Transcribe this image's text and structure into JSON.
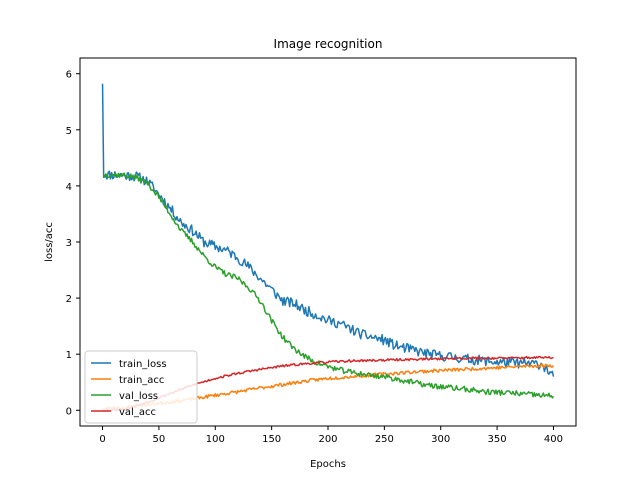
{
  "chart_data": {
    "type": "line",
    "title": "Image recognition",
    "xlabel": "Epochs",
    "ylabel": "loss/acc",
    "xlim": [
      -20,
      420
    ],
    "ylim": [
      -0.28,
      6.28
    ],
    "xticks": [
      0,
      50,
      100,
      150,
      200,
      250,
      300,
      350,
      400
    ],
    "yticks": [
      0,
      1,
      2,
      3,
      4,
      5,
      6
    ],
    "grid": false,
    "legend": "lower-left",
    "series": [
      {
        "name": "train_loss",
        "color": "#1f77b4",
        "points": [
          [
            0,
            5.82
          ],
          [
            1,
            4.2
          ],
          [
            10,
            4.2
          ],
          [
            20,
            4.19
          ],
          [
            30,
            4.17
          ],
          [
            40,
            4.08
          ],
          [
            50,
            3.85
          ],
          [
            60,
            3.6
          ],
          [
            70,
            3.35
          ],
          [
            80,
            3.2
          ],
          [
            90,
            3.0
          ],
          [
            100,
            2.92
          ],
          [
            110,
            2.85
          ],
          [
            120,
            2.72
          ],
          [
            130,
            2.55
          ],
          [
            140,
            2.35
          ],
          [
            150,
            2.15
          ],
          [
            160,
            1.95
          ],
          [
            170,
            1.9
          ],
          [
            180,
            1.78
          ],
          [
            190,
            1.7
          ],
          [
            200,
            1.6
          ],
          [
            210,
            1.55
          ],
          [
            220,
            1.45
          ],
          [
            230,
            1.35
          ],
          [
            240,
            1.3
          ],
          [
            250,
            1.25
          ],
          [
            260,
            1.15
          ],
          [
            270,
            1.1
          ],
          [
            280,
            1.05
          ],
          [
            290,
            1.0
          ],
          [
            300,
            0.97
          ],
          [
            310,
            0.95
          ],
          [
            320,
            0.92
          ],
          [
            330,
            0.9
          ],
          [
            340,
            0.88
          ],
          [
            350,
            0.86
          ],
          [
            360,
            0.85
          ],
          [
            370,
            0.84
          ],
          [
            380,
            0.83
          ],
          [
            390,
            0.82
          ],
          [
            400,
            0.6
          ]
        ],
        "noise": 0.09,
        "seed": 11
      },
      {
        "name": "train_acc",
        "color": "#ff7f0e",
        "points": [
          [
            0,
            0.03
          ],
          [
            20,
            0.05
          ],
          [
            40,
            0.1
          ],
          [
            60,
            0.15
          ],
          [
            80,
            0.2
          ],
          [
            100,
            0.27
          ],
          [
            120,
            0.33
          ],
          [
            140,
            0.4
          ],
          [
            160,
            0.46
          ],
          [
            180,
            0.52
          ],
          [
            200,
            0.57
          ],
          [
            220,
            0.6
          ],
          [
            240,
            0.63
          ],
          [
            260,
            0.66
          ],
          [
            280,
            0.69
          ],
          [
            300,
            0.71
          ],
          [
            320,
            0.73
          ],
          [
            340,
            0.75
          ],
          [
            360,
            0.77
          ],
          [
            380,
            0.79
          ],
          [
            400,
            0.8
          ]
        ],
        "noise": 0.03,
        "seed": 23
      },
      {
        "name": "val_loss",
        "color": "#2ca02c",
        "points": [
          [
            1,
            4.2
          ],
          [
            10,
            4.2
          ],
          [
            20,
            4.19
          ],
          [
            30,
            4.15
          ],
          [
            40,
            4.05
          ],
          [
            50,
            3.8
          ],
          [
            60,
            3.5
          ],
          [
            70,
            3.2
          ],
          [
            80,
            3.0
          ],
          [
            90,
            2.75
          ],
          [
            100,
            2.55
          ],
          [
            110,
            2.42
          ],
          [
            120,
            2.35
          ],
          [
            130,
            2.18
          ],
          [
            140,
            1.95
          ],
          [
            150,
            1.6
          ],
          [
            160,
            1.3
          ],
          [
            170,
            1.1
          ],
          [
            180,
            0.95
          ],
          [
            190,
            0.85
          ],
          [
            200,
            0.78
          ],
          [
            210,
            0.72
          ],
          [
            220,
            0.68
          ],
          [
            230,
            0.65
          ],
          [
            240,
            0.62
          ],
          [
            250,
            0.6
          ],
          [
            260,
            0.56
          ],
          [
            270,
            0.52
          ],
          [
            280,
            0.48
          ],
          [
            290,
            0.44
          ],
          [
            300,
            0.42
          ],
          [
            320,
            0.38
          ],
          [
            340,
            0.33
          ],
          [
            360,
            0.31
          ],
          [
            380,
            0.28
          ],
          [
            400,
            0.25
          ]
        ],
        "noise": 0.05,
        "seed": 37
      },
      {
        "name": "val_acc",
        "color": "#d62728",
        "points": [
          [
            0,
            0.0
          ],
          [
            20,
            0.02
          ],
          [
            40,
            0.15
          ],
          [
            60,
            0.3
          ],
          [
            80,
            0.45
          ],
          [
            100,
            0.57
          ],
          [
            120,
            0.66
          ],
          [
            140,
            0.73
          ],
          [
            160,
            0.79
          ],
          [
            180,
            0.83
          ],
          [
            200,
            0.86
          ],
          [
            220,
            0.88
          ],
          [
            240,
            0.89
          ],
          [
            260,
            0.9
          ],
          [
            280,
            0.91
          ],
          [
            300,
            0.92
          ],
          [
            320,
            0.93
          ],
          [
            340,
            0.93
          ],
          [
            360,
            0.93
          ],
          [
            380,
            0.94
          ],
          [
            400,
            0.94
          ]
        ],
        "noise": 0.02,
        "seed": 53
      }
    ]
  }
}
